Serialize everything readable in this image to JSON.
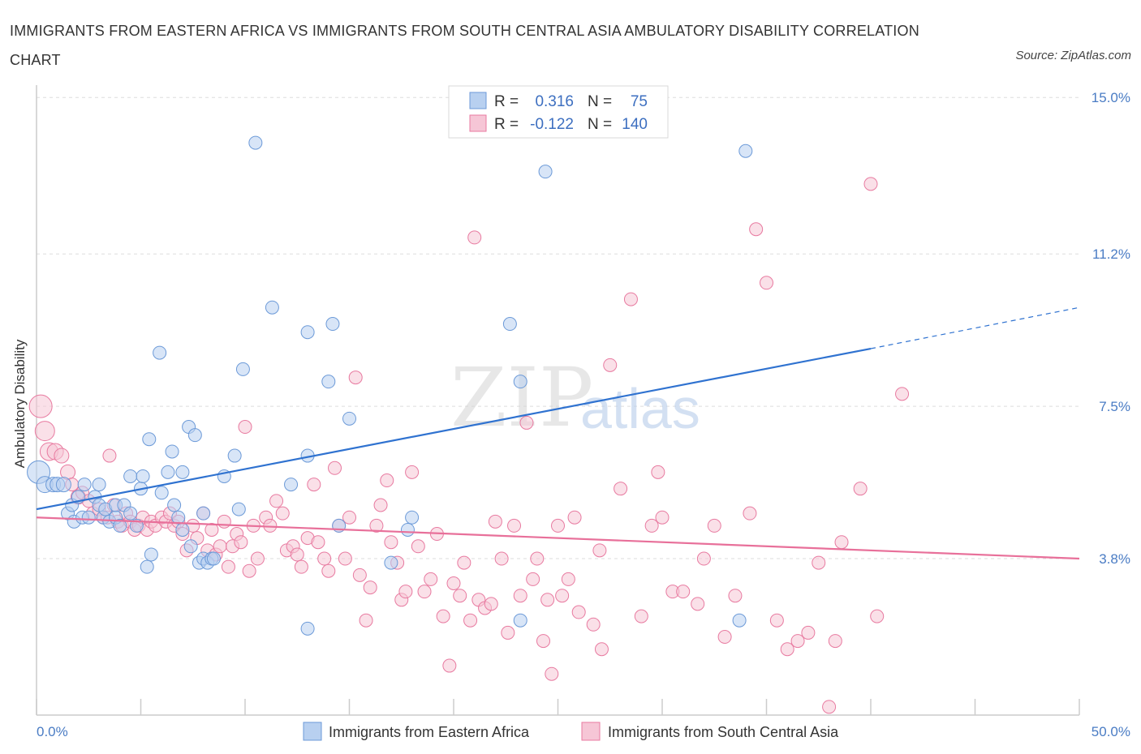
{
  "title": "IMMIGRANTS FROM EASTERN AFRICA VS IMMIGRANTS FROM SOUTH CENTRAL ASIA AMBULATORY DISABILITY CORRELATION CHART",
  "source": "Source: ZipAtlas.com",
  "watermark": {
    "zip": "ZIP",
    "atlas": "atlas"
  },
  "legend": {
    "rows": [
      {
        "r_label": "R =",
        "r_value": "0.316",
        "n_label": "N =",
        "n_value": "75"
      },
      {
        "r_label": "R =",
        "r_value": "-0.122",
        "n_label": "N =",
        "n_value": "140"
      }
    ]
  },
  "chart_data": {
    "type": "scatter",
    "title": "IMMIGRANTS FROM EASTERN AFRICA VS IMMIGRANTS FROM SOUTH CENTRAL ASIA AMBULATORY DISABILITY CORRELATION CHART",
    "xlabel": "",
    "ylabel": "Ambulatory Disability",
    "xlim": [
      0,
      50
    ],
    "ylim": [
      0,
      15.3
    ],
    "x_tick_labels": {
      "left": "0.0%",
      "right": "50.0%"
    },
    "y_ticks": [
      {
        "value": 3.8,
        "label": "3.8%"
      },
      {
        "value": 7.5,
        "label": "7.5%"
      },
      {
        "value": 11.2,
        "label": "11.2%"
      },
      {
        "value": 15.0,
        "label": "15.0%"
      }
    ],
    "grid": true,
    "series": [
      {
        "name": "Immigrants from Eastern Africa",
        "color": "#6c9ad8",
        "fill": "#b8d0f0",
        "R": 0.316,
        "N": 75,
        "trend": {
          "x0": 0,
          "y0": 5.0,
          "x1": 40,
          "y1": 8.9,
          "dashed_to_x": 50,
          "dashed_to_y": 9.9
        },
        "points": [
          [
            0.1,
            5.9,
            14
          ],
          [
            0.4,
            5.6,
            10
          ],
          [
            0.8,
            5.6,
            9
          ],
          [
            1.0,
            5.6,
            9
          ],
          [
            1.3,
            5.6,
            9
          ],
          [
            1.5,
            4.9,
            8
          ],
          [
            1.7,
            5.1,
            8
          ],
          [
            1.8,
            4.7,
            8
          ],
          [
            2.0,
            5.3,
            8
          ],
          [
            2.2,
            4.8,
            8
          ],
          [
            2.3,
            5.6,
            8
          ],
          [
            2.5,
            4.8,
            8
          ],
          [
            2.8,
            5.3,
            8
          ],
          [
            3.0,
            5.6,
            8
          ],
          [
            3.0,
            5.1,
            8
          ],
          [
            3.2,
            4.8,
            8
          ],
          [
            3.3,
            5.0,
            8
          ],
          [
            3.5,
            4.7,
            8
          ],
          [
            3.8,
            4.8,
            8
          ],
          [
            3.8,
            5.1,
            8
          ],
          [
            4.0,
            4.6,
            8
          ],
          [
            4.2,
            5.1,
            8
          ],
          [
            4.5,
            4.9,
            8
          ],
          [
            4.5,
            5.8,
            8
          ],
          [
            4.8,
            4.6,
            8
          ],
          [
            5.0,
            5.5,
            8
          ],
          [
            5.1,
            5.8,
            8
          ],
          [
            5.3,
            3.6,
            8
          ],
          [
            5.4,
            6.7,
            8
          ],
          [
            5.5,
            3.9,
            8
          ],
          [
            5.9,
            8.8,
            8
          ],
          [
            6.0,
            5.4,
            8
          ],
          [
            6.3,
            5.9,
            8
          ],
          [
            6.5,
            6.4,
            8
          ],
          [
            6.6,
            5.1,
            8
          ],
          [
            6.8,
            4.8,
            8
          ],
          [
            7.0,
            5.9,
            8
          ],
          [
            7.0,
            4.5,
            8
          ],
          [
            7.3,
            7.0,
            8
          ],
          [
            7.4,
            4.1,
            8
          ],
          [
            7.6,
            6.8,
            8
          ],
          [
            7.8,
            3.7,
            8
          ],
          [
            8.0,
            4.9,
            8
          ],
          [
            8.0,
            3.8,
            8
          ],
          [
            8.2,
            3.7,
            8
          ],
          [
            8.4,
            3.8,
            8
          ],
          [
            8.5,
            3.8,
            8
          ],
          [
            9.0,
            5.8,
            8
          ],
          [
            9.5,
            6.3,
            8
          ],
          [
            9.7,
            5.0,
            8
          ],
          [
            9.9,
            8.4,
            8
          ],
          [
            10.5,
            13.9,
            8
          ],
          [
            11.3,
            9.9,
            8
          ],
          [
            12.2,
            5.6,
            8
          ],
          [
            13.0,
            6.3,
            8
          ],
          [
            13.0,
            9.3,
            8
          ],
          [
            13.0,
            2.1,
            8
          ],
          [
            14.0,
            8.1,
            8
          ],
          [
            14.2,
            9.5,
            8
          ],
          [
            14.5,
            4.6,
            8
          ],
          [
            15.0,
            7.2,
            8
          ],
          [
            17.0,
            3.7,
            8
          ],
          [
            17.8,
            4.5,
            8
          ],
          [
            18.0,
            4.8,
            8
          ],
          [
            22.7,
            9.5,
            8
          ],
          [
            23.2,
            2.3,
            8
          ],
          [
            23.2,
            8.1,
            8
          ],
          [
            24.4,
            13.2,
            8
          ],
          [
            33.7,
            2.3,
            8
          ],
          [
            34.0,
            13.7,
            8
          ]
        ]
      },
      {
        "name": "Immigrants from South Central Asia",
        "color": "#e87aa0",
        "fill": "#f6c6d6",
        "R": -0.122,
        "N": 140,
        "trend": {
          "x0": 0,
          "y0": 4.8,
          "x1": 50,
          "y1": 3.8
        },
        "points": [
          [
            0.2,
            7.5,
            14
          ],
          [
            0.4,
            6.9,
            12
          ],
          [
            0.6,
            6.4,
            11
          ],
          [
            0.9,
            6.4,
            10
          ],
          [
            1.2,
            6.3,
            9
          ],
          [
            1.5,
            5.9,
            9
          ],
          [
            1.7,
            5.6,
            8
          ],
          [
            2.0,
            5.3,
            9
          ],
          [
            2.2,
            5.4,
            8
          ],
          [
            2.5,
            5.2,
            8
          ],
          [
            2.7,
            4.9,
            8
          ],
          [
            3.0,
            5.0,
            8
          ],
          [
            3.2,
            4.8,
            8
          ],
          [
            3.4,
            4.8,
            8
          ],
          [
            3.5,
            6.3,
            8
          ],
          [
            3.7,
            5.1,
            8
          ],
          [
            3.9,
            4.7,
            8
          ],
          [
            4.1,
            4.6,
            8
          ],
          [
            4.3,
            4.9,
            8
          ],
          [
            4.5,
            4.7,
            8
          ],
          [
            4.7,
            4.5,
            8
          ],
          [
            4.9,
            4.6,
            8
          ],
          [
            5.1,
            4.8,
            8
          ],
          [
            5.3,
            4.5,
            8
          ],
          [
            5.5,
            4.7,
            8
          ],
          [
            5.7,
            4.6,
            8
          ],
          [
            6.0,
            4.8,
            8
          ],
          [
            6.2,
            4.7,
            8
          ],
          [
            6.4,
            4.9,
            8
          ],
          [
            6.6,
            4.6,
            8
          ],
          [
            6.8,
            4.7,
            8
          ],
          [
            7.0,
            4.4,
            8
          ],
          [
            7.2,
            4.0,
            8
          ],
          [
            7.5,
            4.6,
            8
          ],
          [
            7.7,
            4.3,
            8
          ],
          [
            8.0,
            4.9,
            8
          ],
          [
            8.2,
            4.0,
            8
          ],
          [
            8.4,
            4.5,
            8
          ],
          [
            8.6,
            3.9,
            8
          ],
          [
            8.8,
            4.1,
            8
          ],
          [
            9.0,
            4.7,
            8
          ],
          [
            9.2,
            3.6,
            8
          ],
          [
            9.4,
            4.1,
            8
          ],
          [
            9.6,
            4.4,
            8
          ],
          [
            9.8,
            4.2,
            8
          ],
          [
            10.0,
            7.0,
            8
          ],
          [
            10.2,
            3.5,
            8
          ],
          [
            10.4,
            4.6,
            8
          ],
          [
            10.6,
            3.8,
            8
          ],
          [
            11.0,
            4.8,
            8
          ],
          [
            11.2,
            4.6,
            8
          ],
          [
            11.5,
            5.2,
            8
          ],
          [
            11.8,
            4.9,
            8
          ],
          [
            12.0,
            4.0,
            8
          ],
          [
            12.3,
            4.1,
            8
          ],
          [
            12.5,
            3.9,
            8
          ],
          [
            12.7,
            3.6,
            8
          ],
          [
            13.0,
            4.3,
            8
          ],
          [
            13.3,
            5.6,
            8
          ],
          [
            13.5,
            4.2,
            8
          ],
          [
            13.8,
            3.8,
            8
          ],
          [
            14.0,
            3.5,
            8
          ],
          [
            14.3,
            6.0,
            8
          ],
          [
            14.5,
            4.6,
            8
          ],
          [
            14.8,
            3.8,
            8
          ],
          [
            15.0,
            4.8,
            8
          ],
          [
            15.3,
            8.2,
            8
          ],
          [
            15.5,
            3.4,
            8
          ],
          [
            15.8,
            2.3,
            8
          ],
          [
            16.0,
            3.1,
            8
          ],
          [
            16.3,
            4.6,
            8
          ],
          [
            16.5,
            5.1,
            8
          ],
          [
            16.8,
            5.7,
            8
          ],
          [
            17.0,
            4.2,
            8
          ],
          [
            17.3,
            3.7,
            8
          ],
          [
            17.5,
            2.8,
            8
          ],
          [
            17.7,
            3.0,
            8
          ],
          [
            18.0,
            5.9,
            8
          ],
          [
            18.3,
            4.1,
            8
          ],
          [
            18.6,
            3.0,
            8
          ],
          [
            18.9,
            3.3,
            8
          ],
          [
            19.2,
            4.4,
            8
          ],
          [
            19.5,
            2.4,
            8
          ],
          [
            19.8,
            1.2,
            8
          ],
          [
            20.0,
            3.2,
            8
          ],
          [
            20.3,
            2.9,
            8
          ],
          [
            20.5,
            3.7,
            8
          ],
          [
            20.8,
            2.3,
            8
          ],
          [
            21.0,
            11.6,
            8
          ],
          [
            21.2,
            2.8,
            8
          ],
          [
            21.5,
            2.6,
            8
          ],
          [
            21.8,
            2.7,
            8
          ],
          [
            22.0,
            4.7,
            8
          ],
          [
            22.3,
            3.8,
            8
          ],
          [
            22.6,
            2.0,
            8
          ],
          [
            22.9,
            4.6,
            8
          ],
          [
            23.2,
            2.9,
            8
          ],
          [
            23.5,
            7.1,
            8
          ],
          [
            23.8,
            3.3,
            8
          ],
          [
            24.0,
            3.8,
            8
          ],
          [
            24.3,
            1.8,
            8
          ],
          [
            24.5,
            2.8,
            8
          ],
          [
            24.7,
            1.0,
            8
          ],
          [
            25.0,
            4.6,
            8
          ],
          [
            25.2,
            2.9,
            8
          ],
          [
            25.5,
            3.3,
            8
          ],
          [
            25.8,
            4.8,
            8
          ],
          [
            26.0,
            2.5,
            8
          ],
          [
            27.0,
            4.0,
            8
          ],
          [
            27.5,
            8.5,
            8
          ],
          [
            28.0,
            5.5,
            8
          ],
          [
            28.5,
            10.1,
            8
          ],
          [
            29.0,
            2.4,
            8
          ],
          [
            29.5,
            4.6,
            8
          ],
          [
            30.0,
            4.8,
            8
          ],
          [
            30.5,
            3.0,
            8
          ],
          [
            31.0,
            3.0,
            8
          ],
          [
            32.0,
            3.8,
            8
          ],
          [
            32.5,
            4.6,
            8
          ],
          [
            33.0,
            1.9,
            8
          ],
          [
            33.5,
            2.9,
            8
          ],
          [
            34.5,
            11.8,
            8
          ],
          [
            35.0,
            10.5,
            8
          ],
          [
            35.5,
            2.3,
            8
          ],
          [
            36.0,
            1.6,
            8
          ],
          [
            36.5,
            1.8,
            8
          ],
          [
            37.0,
            2.0,
            8
          ],
          [
            37.5,
            3.7,
            8
          ],
          [
            38.0,
            0.2,
            8
          ],
          [
            38.3,
            1.8,
            8
          ],
          [
            38.6,
            4.2,
            8
          ],
          [
            39.5,
            5.5,
            8
          ],
          [
            40.0,
            12.9,
            8
          ],
          [
            40.3,
            2.4,
            8
          ],
          [
            41.5,
            7.8,
            8
          ],
          [
            27.1,
            1.6,
            8
          ],
          [
            26.7,
            2.2,
            8
          ],
          [
            29.8,
            5.9,
            8
          ],
          [
            31.7,
            2.7,
            8
          ],
          [
            34.2,
            4.9,
            8
          ]
        ]
      }
    ]
  }
}
